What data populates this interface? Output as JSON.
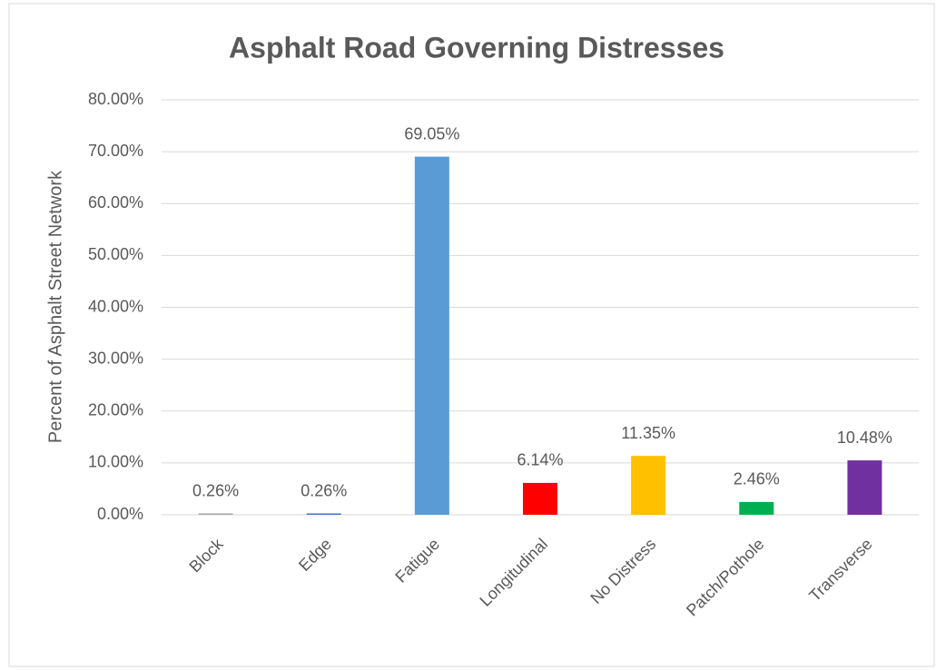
{
  "chart_data": {
    "type": "bar",
    "title": "Asphalt Road Governing Distresses",
    "y_label": "Percent of Asphalt Street Network",
    "categories": [
      "Block",
      "Edge",
      "Fatigue",
      "Longitudinal",
      "No Distress",
      "Patch/Pothole",
      "Transverse"
    ],
    "values": [
      0.26,
      0.26,
      69.05,
      6.14,
      11.35,
      2.46,
      10.48
    ],
    "value_labels": [
      "0.26%",
      "0.26%",
      "69.05%",
      "6.14%",
      "11.35%",
      "2.46%",
      "10.48%"
    ],
    "colors": [
      "#a5a5a5",
      "#4472c4",
      "#5b9bd5",
      "#ff0000",
      "#ffc000",
      "#00b050",
      "#7030a0"
    ],
    "ylim": [
      0,
      80
    ],
    "yticks": [
      {
        "value": 0,
        "label": "0.00%"
      },
      {
        "value": 10,
        "label": "10.00%"
      },
      {
        "value": 20,
        "label": "20.00%"
      },
      {
        "value": 30,
        "label": "30.00%"
      },
      {
        "value": 40,
        "label": "40.00%"
      },
      {
        "value": 50,
        "label": "50.00%"
      },
      {
        "value": 60,
        "label": "60.00%"
      },
      {
        "value": 70,
        "label": "70.00%"
      },
      {
        "value": 80,
        "label": "80.00%"
      }
    ],
    "grid": true
  }
}
